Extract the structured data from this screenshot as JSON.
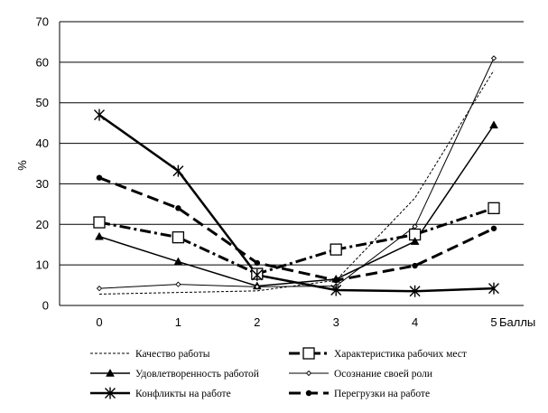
{
  "chart_data": {
    "type": "line",
    "title": "",
    "xlabel": "Баллы",
    "ylabel": "%",
    "ylim": [
      0,
      70
    ],
    "yticks": [
      0,
      10,
      20,
      30,
      40,
      50,
      60,
      70
    ],
    "categories": [
      "0",
      "1",
      "2",
      "3",
      "4",
      "5"
    ],
    "grid": "horizontal",
    "legend": "bottom",
    "series": [
      {
        "name": "Качество работы",
        "values": [
          2.8,
          3.2,
          3.6,
          6.2,
          26.5,
          58
        ],
        "color": "#000000",
        "style": "dotted-thin",
        "marker": "none"
      },
      {
        "name": "Характеристика рабочих мест",
        "values": [
          20.5,
          16.8,
          7.8,
          13.8,
          17.5,
          24
        ],
        "color": "#000000",
        "style": "dashdot-thick",
        "marker": "square"
      },
      {
        "name": "Удовлетворенность работой",
        "values": [
          17,
          10.8,
          4.8,
          6.5,
          15.8,
          44.5
        ],
        "color": "#000000",
        "style": "solid-medium",
        "marker": "triangle"
      },
      {
        "name": "Осознание своей роли",
        "values": [
          4.2,
          5.2,
          4.6,
          4.8,
          19.5,
          61
        ],
        "color": "#000000",
        "style": "solid-thin",
        "marker": "diamond"
      },
      {
        "name": "Конфликты на работе",
        "values": [
          47,
          33.2,
          7.5,
          3.8,
          3.5,
          4.2
        ],
        "color": "#000000",
        "style": "solid-thick",
        "marker": "star"
      },
      {
        "name": "Перегрузки на работе",
        "values": [
          31.5,
          24,
          10.5,
          6.2,
          9.8,
          19
        ],
        "color": "#000000",
        "style": "dash-thick",
        "marker": "circle"
      }
    ]
  }
}
